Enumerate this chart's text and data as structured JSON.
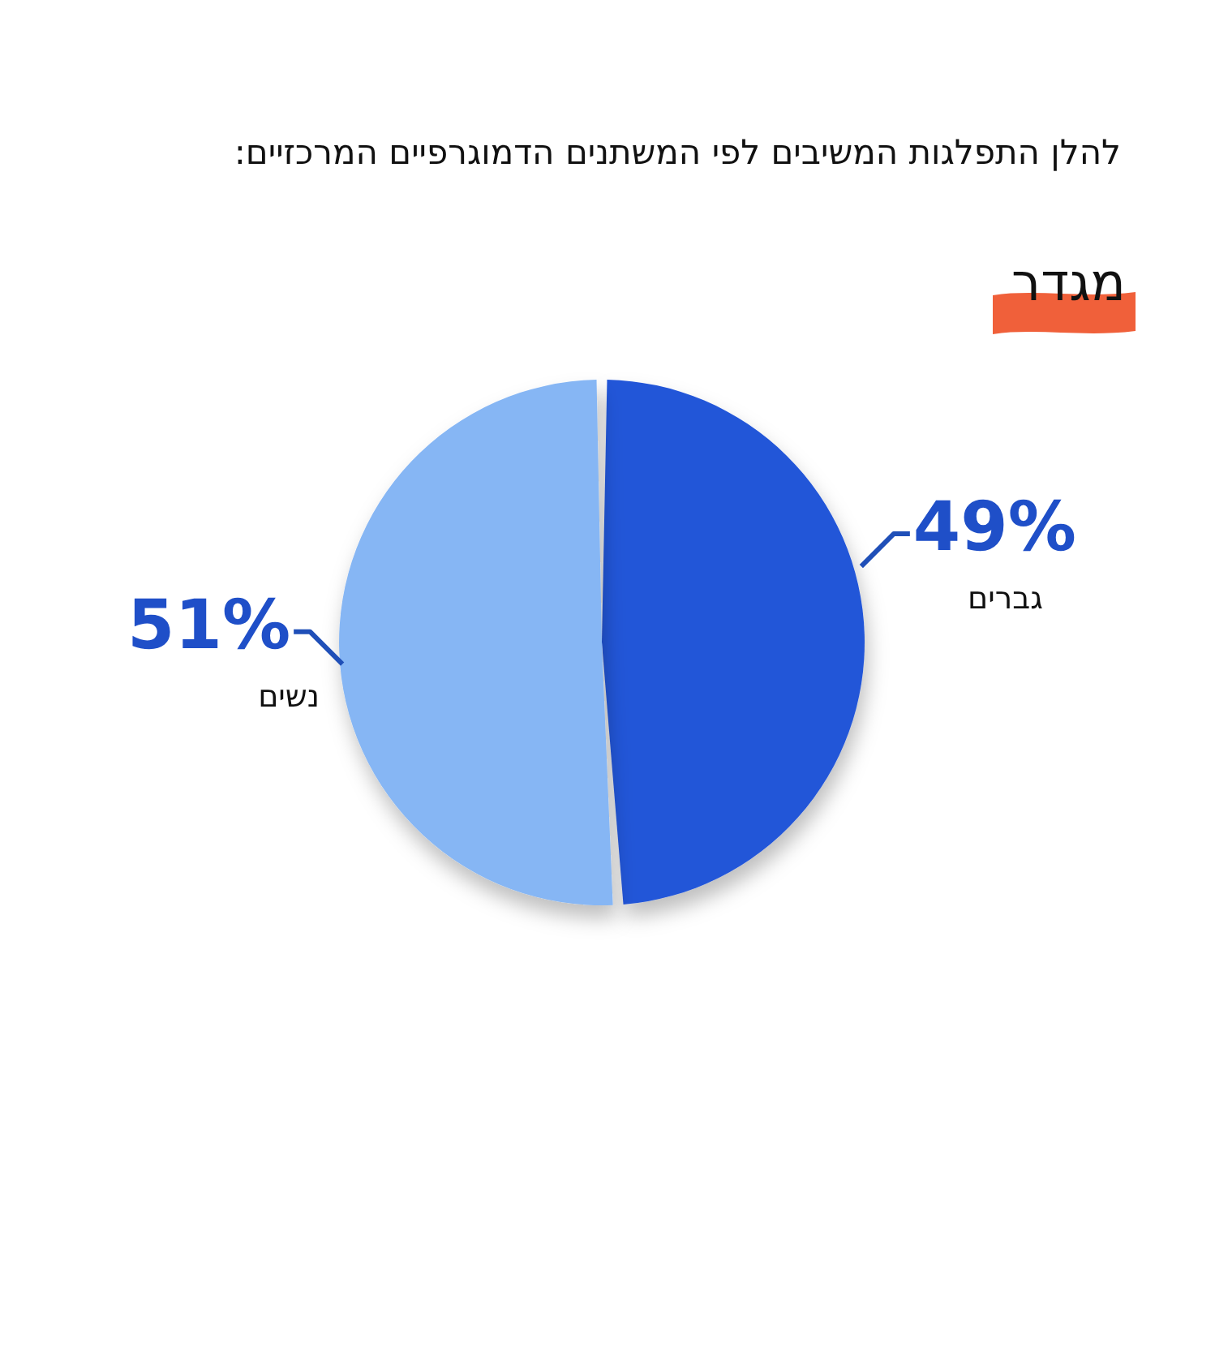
{
  "chart_data": {
    "type": "pie",
    "title": "להלן התפלגות המשיבים לפי המשתנים הדמוגרפיים המרכזיים:",
    "subtitle": "מגדר",
    "categories": [
      "גברים",
      "נשים"
    ],
    "values": [
      49,
      51
    ],
    "colors": [
      "#2456d8",
      "#86b6f4"
    ],
    "value_labels": [
      "49%",
      "51%"
    ]
  }
}
